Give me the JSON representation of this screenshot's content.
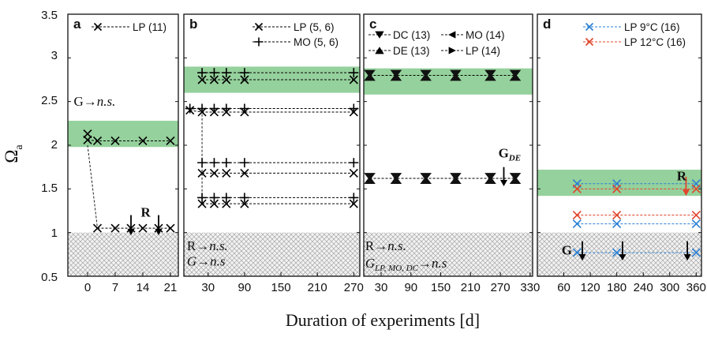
{
  "figure": {
    "ylabel_main": "Ω",
    "ylabel_sub": "a",
    "xlabel": "Duration of experiments [d]",
    "yticks": [
      "3.5",
      "3",
      "2.5",
      "2",
      "1.5",
      "1",
      "0.5"
    ]
  },
  "chart_data": [
    {
      "type": "scatter",
      "panel": "a",
      "xlim": [
        -5,
        23
      ],
      "ylim": [
        0.5,
        3.5
      ],
      "xticks": [
        0,
        7,
        14,
        21
      ],
      "xtick_labels": [
        "0",
        "7",
        "14",
        "21"
      ],
      "bands": [
        {
          "kind": "green",
          "y0": 1.98,
          "y1": 2.28
        },
        {
          "kind": "hatch",
          "y0": 0.5,
          "y1": 1.0
        }
      ],
      "legend": [
        {
          "label": "LP (11)",
          "marker": "x",
          "color": "#000000"
        }
      ],
      "series": [
        {
          "name": "LP (11)",
          "marker": "x",
          "color": "#000000",
          "lines": [
            {
              "x": [
                0,
                2.5,
                7,
                14,
                21
              ],
              "y": [
                2.06,
                2.05,
                2.05,
                2.05,
                2.05
              ]
            },
            {
              "x": [
                2.5,
                7,
                11,
                14,
                18,
                21
              ],
              "y": [
                1.05,
                1.05,
                1.05,
                1.05,
                1.05,
                1.05
              ]
            }
          ],
          "points": [
            {
              "x": 0,
              "y": 2.13
            },
            {
              "x": 0,
              "y": 2.06
            },
            {
              "x": 2.5,
              "y": 2.05
            },
            {
              "x": 7,
              "y": 2.05
            },
            {
              "x": 14,
              "y": 2.05
            },
            {
              "x": 21,
              "y": 2.05
            },
            {
              "x": 2.5,
              "y": 1.05
            },
            {
              "x": 7,
              "y": 1.05
            },
            {
              "x": 11,
              "y": 1.05
            },
            {
              "x": 14,
              "y": 1.05
            },
            {
              "x": 18,
              "y": 1.05
            },
            {
              "x": 21,
              "y": 1.05
            }
          ]
        }
      ],
      "connector": {
        "from": {
          "x": 0,
          "y": 2.0
        },
        "to": {
          "x": 2.5,
          "y": 1.05
        }
      },
      "arrows": [
        {
          "x": 11,
          "y_top": 1.2,
          "y_bottom": 0.97,
          "color": "#000000"
        },
        {
          "x": 18,
          "y_top": 1.2,
          "y_bottom": 0.97,
          "color": "#000000"
        }
      ],
      "annotations": [
        {
          "x": -3.5,
          "y": 2.45,
          "text": "G→",
          "italic": "n.s.",
          "bold": false
        },
        {
          "x": 13.5,
          "y": 1.18,
          "text": "R",
          "italic": "",
          "bold": true
        }
      ]
    },
    {
      "type": "scatter",
      "panel": "b",
      "xlim": [
        -10,
        280
      ],
      "ylim": [
        0.5,
        3.5
      ],
      "xticks": [
        30,
        90,
        150,
        210,
        270
      ],
      "xtick_labels": [
        "30",
        "90",
        "150",
        "210",
        "270"
      ],
      "bands": [
        {
          "kind": "green",
          "y0": 2.6,
          "y1": 2.9
        },
        {
          "kind": "hatch",
          "y0": 0.5,
          "y1": 1.0
        }
      ],
      "legend": [
        {
          "label": "LP (5, 6)",
          "marker": "x",
          "color": "#000000"
        },
        {
          "label": "MO (5, 6)",
          "marker": "+",
          "color": "#000000"
        }
      ],
      "series": [
        {
          "name": "LP (5, 6)",
          "marker": "x",
          "color": "#000000",
          "lines": [
            {
              "x": [
                0,
                20,
                40,
                60,
                90,
                270
              ],
              "y": [
                2.4,
                2.38,
                2.38,
                2.38,
                2.38,
                2.38
              ]
            },
            {
              "x": [
                20,
                40,
                60,
                90,
                270
              ],
              "y": [
                2.75,
                2.75,
                2.75,
                2.75,
                2.75
              ]
            },
            {
              "x": [
                20,
                40,
                60,
                90,
                270
              ],
              "y": [
                1.68,
                1.68,
                1.68,
                1.68,
                1.68
              ]
            },
            {
              "x": [
                20,
                40,
                60,
                90,
                270
              ],
              "y": [
                1.33,
                1.33,
                1.33,
                1.33,
                1.33
              ]
            }
          ],
          "points": [
            {
              "x": 0,
              "y": 2.4
            },
            {
              "x": 20,
              "y": 2.38
            },
            {
              "x": 40,
              "y": 2.38
            },
            {
              "x": 60,
              "y": 2.38
            },
            {
              "x": 90,
              "y": 2.38
            },
            {
              "x": 270,
              "y": 2.38
            },
            {
              "x": 20,
              "y": 2.75
            },
            {
              "x": 40,
              "y": 2.75
            },
            {
              "x": 60,
              "y": 2.75
            },
            {
              "x": 90,
              "y": 2.75
            },
            {
              "x": 270,
              "y": 2.75
            },
            {
              "x": 20,
              "y": 1.68
            },
            {
              "x": 40,
              "y": 1.68
            },
            {
              "x": 60,
              "y": 1.68
            },
            {
              "x": 90,
              "y": 1.68
            },
            {
              "x": 270,
              "y": 1.68
            },
            {
              "x": 20,
              "y": 1.33
            },
            {
              "x": 40,
              "y": 1.33
            },
            {
              "x": 60,
              "y": 1.33
            },
            {
              "x": 90,
              "y": 1.33
            },
            {
              "x": 270,
              "y": 1.33
            }
          ]
        },
        {
          "name": "MO (5, 6)",
          "marker": "+",
          "color": "#000000",
          "lines": [
            {
              "x": [
                0,
                20,
                40,
                60,
                90,
                270
              ],
              "y": [
                2.42,
                2.42,
                2.42,
                2.42,
                2.42,
                2.42
              ]
            },
            {
              "x": [
                20,
                40,
                60,
                90,
                270
              ],
              "y": [
                2.83,
                2.83,
                2.83,
                2.83,
                2.83
              ]
            },
            {
              "x": [
                20,
                40,
                60,
                90,
                270
              ],
              "y": [
                1.8,
                1.8,
                1.8,
                1.8,
                1.8
              ]
            },
            {
              "x": [
                20,
                40,
                60,
                90,
                270
              ],
              "y": [
                1.4,
                1.4,
                1.4,
                1.4,
                1.4
              ]
            }
          ],
          "points": [
            {
              "x": 0,
              "y": 2.42
            },
            {
              "x": 20,
              "y": 2.42
            },
            {
              "x": 40,
              "y": 2.42
            },
            {
              "x": 60,
              "y": 2.42
            },
            {
              "x": 90,
              "y": 2.42
            },
            {
              "x": 270,
              "y": 2.42
            },
            {
              "x": 20,
              "y": 2.83
            },
            {
              "x": 40,
              "y": 2.83
            },
            {
              "x": 60,
              "y": 2.83
            },
            {
              "x": 90,
              "y": 2.83
            },
            {
              "x": 270,
              "y": 2.83
            },
            {
              "x": 20,
              "y": 1.8
            },
            {
              "x": 40,
              "y": 1.8
            },
            {
              "x": 60,
              "y": 1.8
            },
            {
              "x": 90,
              "y": 1.8
            },
            {
              "x": 270,
              "y": 1.8
            },
            {
              "x": 20,
              "y": 1.4
            },
            {
              "x": 40,
              "y": 1.4
            },
            {
              "x": 60,
              "y": 1.4
            },
            {
              "x": 90,
              "y": 1.4
            },
            {
              "x": 270,
              "y": 1.4
            }
          ]
        }
      ],
      "connector": {
        "from": {
          "x": 20,
          "y": 2.4
        },
        "to": {
          "x": 20,
          "y": 1.33
        }
      },
      "arrows": [],
      "annotations": [
        {
          "x": -5,
          "y": 0.8,
          "text": "R→",
          "italic": "n.s.",
          "bold": false
        },
        {
          "x": -5,
          "y": 0.62,
          "text": "",
          "italic": "G",
          "tail": "→n.s",
          "bold": false
        }
      ]
    },
    {
      "type": "scatter",
      "panel": "c",
      "xlim": [
        -5,
        335
      ],
      "ylim": [
        0.5,
        3.5
      ],
      "xticks": [
        30,
        90,
        150,
        210,
        270,
        330
      ],
      "xtick_labels": [
        "30",
        "90",
        "150",
        "210",
        "270",
        "330"
      ],
      "bands": [
        {
          "kind": "green",
          "y0": 2.58,
          "y1": 2.88
        },
        {
          "kind": "hatch",
          "y0": 0.5,
          "y1": 1.0
        }
      ],
      "legend": [
        {
          "label": "DC (13)",
          "marker": "tri-down",
          "color": "#000000"
        },
        {
          "label": "MO (14)",
          "marker": "tri-left",
          "color": "#000000"
        },
        {
          "label": "DE (13)",
          "marker": "tri-up",
          "color": "#000000"
        },
        {
          "label": "LP (14)",
          "marker": "tri-right",
          "color": "#000000"
        }
      ],
      "series": [
        {
          "name": "DC (13)",
          "marker": "tri-down",
          "color": "#000000",
          "lines": [
            {
              "x": [
                7,
                60,
                120,
                180,
                250,
                300
              ],
              "y": [
                2.8,
                2.8,
                2.8,
                2.8,
                2.8,
                2.8
              ]
            }
          ],
          "points": [
            {
              "x": 7,
              "y": 2.8
            },
            {
              "x": 60,
              "y": 2.8
            },
            {
              "x": 120,
              "y": 2.8
            },
            {
              "x": 180,
              "y": 2.8
            },
            {
              "x": 250,
              "y": 2.8
            },
            {
              "x": 300,
              "y": 2.8
            }
          ]
        },
        {
          "name": "DE (13)",
          "marker": "tri-up",
          "color": "#000000",
          "lines": [
            {
              "x": [
                7,
                60,
                120,
                180,
                250,
                300
              ],
              "y": [
                1.62,
                1.62,
                1.62,
                1.62,
                1.62,
                1.62
              ]
            }
          ],
          "points": [
            {
              "x": 7,
              "y": 1.62
            },
            {
              "x": 60,
              "y": 1.62
            },
            {
              "x": 120,
              "y": 1.62
            },
            {
              "x": 180,
              "y": 1.62
            },
            {
              "x": 250,
              "y": 1.62
            },
            {
              "x": 300,
              "y": 1.62
            }
          ]
        }
      ],
      "connector": null,
      "arrows": [
        {
          "x": 277,
          "y_top": 1.75,
          "y_bottom": 1.53,
          "color": "#000000"
        }
      ],
      "annotations": [
        {
          "x": -2,
          "y": 0.8,
          "text": "R→",
          "italic": "n.s.",
          "bold": false
        },
        {
          "x": -2,
          "y": 0.6,
          "text": "",
          "italic": "G",
          "sub": "LP, MO, DC",
          "tail": "→n.s",
          "bold": false
        },
        {
          "x": 266,
          "y": 1.86,
          "text": "G",
          "sub": "DE",
          "bold": true
        }
      ]
    },
    {
      "type": "scatter",
      "panel": "d",
      "xlim": [
        0,
        372
      ],
      "ylim": [
        0.5,
        3.5
      ],
      "xticks": [
        60,
        120,
        180,
        240,
        300,
        360
      ],
      "xtick_labels": [
        "60",
        "120",
        "180",
        "240",
        "300",
        "360"
      ],
      "bands": [
        {
          "kind": "green",
          "y0": 1.42,
          "y1": 1.72
        },
        {
          "kind": "hatch",
          "y0": 0.5,
          "y1": 1.0
        }
      ],
      "legend": [
        {
          "label": "LP 9°C (16)",
          "marker": "x",
          "color": "#2a7fd4"
        },
        {
          "label": "LP 12°C (16)",
          "marker": "x",
          "color": "#e0442a"
        }
      ],
      "series": [
        {
          "name": "LP 9°C (16)",
          "marker": "x",
          "color": "#2a7fd4",
          "lines": [
            {
              "x": [
                90,
                180,
                360
              ],
              "y": [
                1.56,
                1.56,
                1.56
              ]
            },
            {
              "x": [
                90,
                180,
                360
              ],
              "y": [
                1.1,
                1.1,
                1.1
              ]
            },
            {
              "x": [
                90,
                180,
                360
              ],
              "y": [
                0.77,
                0.77,
                0.77
              ]
            }
          ],
          "points": [
            {
              "x": 90,
              "y": 1.56
            },
            {
              "x": 180,
              "y": 1.56
            },
            {
              "x": 360,
              "y": 1.56
            },
            {
              "x": 90,
              "y": 1.1
            },
            {
              "x": 180,
              "y": 1.1
            },
            {
              "x": 360,
              "y": 1.1
            },
            {
              "x": 90,
              "y": 0.77
            },
            {
              "x": 180,
              "y": 0.77
            },
            {
              "x": 360,
              "y": 0.77
            }
          ]
        },
        {
          "name": "LP 12°C (16)",
          "marker": "x",
          "color": "#e0442a",
          "lines": [
            {
              "x": [
                90,
                180,
                360
              ],
              "y": [
                1.5,
                1.5,
                1.5
              ]
            },
            {
              "x": [
                90,
                180,
                360
              ],
              "y": [
                1.2,
                1.2,
                1.2
              ]
            }
          ],
          "points": [
            {
              "x": 90,
              "y": 1.5
            },
            {
              "x": 180,
              "y": 1.5
            },
            {
              "x": 360,
              "y": 1.5
            },
            {
              "x": 90,
              "y": 1.2
            },
            {
              "x": 180,
              "y": 1.2
            },
            {
              "x": 360,
              "y": 1.2
            }
          ]
        }
      ],
      "connector": null,
      "arrows": [
        {
          "x": 337,
          "y_top": 1.64,
          "y_bottom": 1.42,
          "color": "#e0442a"
        },
        {
          "x": 102,
          "y_top": 0.9,
          "y_bottom": 0.68,
          "color": "#000000"
        },
        {
          "x": 193,
          "y_top": 0.9,
          "y_bottom": 0.68,
          "color": "#000000"
        },
        {
          "x": 340,
          "y_top": 0.9,
          "y_bottom": 0.68,
          "color": "#000000"
        }
      ],
      "annotations": [
        {
          "x": 316,
          "y": 1.6,
          "text": "R",
          "bold": true
        },
        {
          "x": 55,
          "y": 0.75,
          "text": "G",
          "bold": true
        }
      ]
    }
  ]
}
